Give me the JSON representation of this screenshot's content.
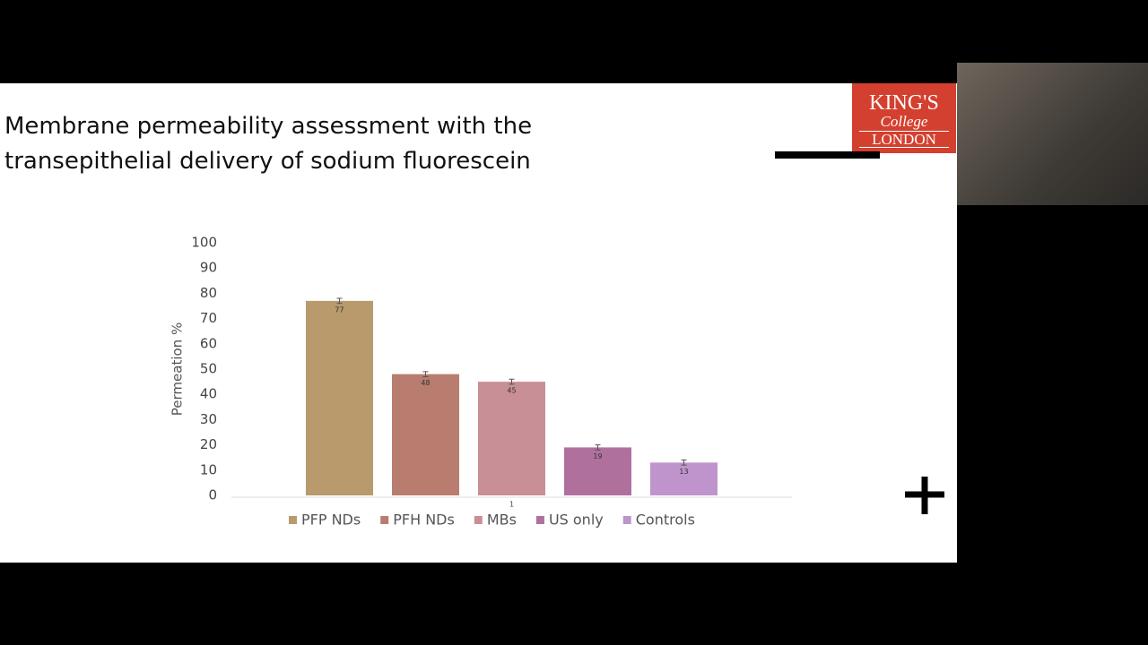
{
  "logo": {
    "line1": "KING'S",
    "line2": "College",
    "line3": "LONDON"
  },
  "chart_data": {
    "type": "bar",
    "title": "Membrane permeability assessment with the transepithelial delivery of sodium fluorescein",
    "y_label": "Permeation %",
    "categories": [
      "1"
    ],
    "series": [
      {
        "name": "PFP NDs",
        "color": "#b89a6c",
        "values": [
          77
        ],
        "errors": [
          1
        ]
      },
      {
        "name": "PFH NDs",
        "color": "#b87d6e",
        "values": [
          48
        ],
        "errors": [
          1
        ]
      },
      {
        "name": "MBs",
        "color": "#c98f96",
        "values": [
          45
        ],
        "errors": [
          1
        ]
      },
      {
        "name": "US only",
        "color": "#b0709e",
        "values": [
          19
        ],
        "errors": [
          1
        ]
      },
      {
        "name": "Controls",
        "color": "#bf94cc",
        "values": [
          13
        ],
        "errors": [
          1
        ]
      }
    ],
    "ylim": [
      0,
      100
    ],
    "yticks": [
      0,
      10,
      20,
      30,
      40,
      50,
      60,
      70,
      80,
      90,
      100
    ],
    "grid": false,
    "legend": "bottom"
  }
}
